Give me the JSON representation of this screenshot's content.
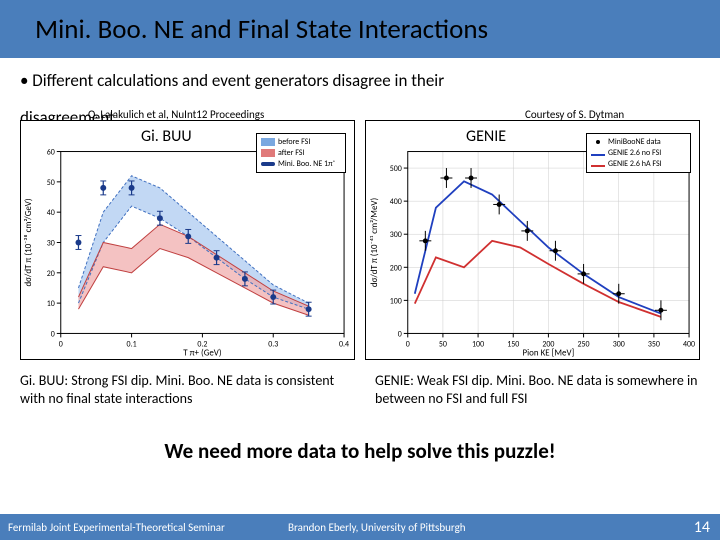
{
  "title": "Mini. Boo. NE and Final State Interactions",
  "bullet": "• Different calculations and event generators disagree in their",
  "overlap_word": "disagreement",
  "credit_left": "O. Lalakulich et al, NuInt12 Proceedings",
  "credit_right": "Courtesy of S. Dytman",
  "gibuu": {
    "label": "Gi. BUU",
    "ylabel": "dσ/dT π (10⁻³⁸ cm²/GeV)",
    "xlabel": "T π+ (GeV)",
    "xlim": [
      0,
      0.4
    ],
    "ylim": [
      0,
      60
    ],
    "xticks": [
      0,
      0.1,
      0.2,
      0.3,
      0.4
    ],
    "yticks": [
      0,
      10,
      20,
      30,
      40,
      50,
      60
    ],
    "legend": [
      {
        "label": "before FSI",
        "color": "#7aa8e0",
        "type": "band"
      },
      {
        "label": "after FSI",
        "color": "#e07a7a",
        "type": "band"
      },
      {
        "label": "Mini. Boo. NE 1π⁺",
        "color": "#1a3a8a",
        "type": "points"
      }
    ],
    "data_x": [
      0.025,
      0.06,
      0.1,
      0.14,
      0.18,
      0.22,
      0.26,
      0.3,
      0.35
    ],
    "data_y": [
      30,
      48,
      48,
      38,
      32,
      25,
      18,
      12,
      8
    ],
    "before_band_low": [
      10,
      30,
      42,
      38,
      32,
      25,
      18,
      12,
      8
    ],
    "before_band_high": [
      15,
      40,
      52,
      48,
      40,
      32,
      24,
      16,
      10
    ],
    "after_band_low": [
      8,
      22,
      20,
      28,
      25,
      20,
      15,
      10,
      6
    ],
    "after_band_high": [
      12,
      30,
      28,
      36,
      32,
      26,
      20,
      14,
      9
    ],
    "colors": {
      "before_band": "#a8c8f0",
      "after_band": "#f0a8a8",
      "data_points": "#1a3a8a",
      "grid": "#cccccc"
    }
  },
  "genie": {
    "label": "GENIE",
    "ylabel": "dσ/dT π (10⁻⁴¹ cm²/MeV)",
    "xlabel": "Pion KE [MeV]",
    "xlim": [
      0,
      400
    ],
    "ylim": [
      0,
      550
    ],
    "xticks": [
      0,
      50,
      100,
      150,
      200,
      250,
      300,
      350,
      400
    ],
    "yticks": [
      0,
      100,
      200,
      300,
      400,
      500
    ],
    "legend": [
      {
        "label": "MiniBooNE data",
        "color": "#000000",
        "type": "points"
      },
      {
        "label": "GENIE 2.6 no FSI",
        "color": "#1f3fbf",
        "type": "line"
      },
      {
        "label": "GENIE 2.6 hA FSI",
        "color": "#d03030",
        "type": "line"
      }
    ],
    "data_x": [
      25,
      55,
      90,
      130,
      170,
      210,
      250,
      300,
      360
    ],
    "data_y": [
      280,
      470,
      470,
      390,
      310,
      250,
      180,
      120,
      70
    ],
    "nofsi_x": [
      10,
      40,
      80,
      120,
      160,
      200,
      250,
      300,
      360
    ],
    "nofsi_y": [
      120,
      380,
      460,
      420,
      340,
      260,
      180,
      110,
      60
    ],
    "fsi_x": [
      10,
      40,
      80,
      120,
      160,
      200,
      250,
      300,
      360
    ],
    "fsi_y": [
      90,
      230,
      200,
      280,
      260,
      210,
      150,
      95,
      50
    ],
    "colors": {
      "data_points": "#000000",
      "nofsi_line": "#1f3fbf",
      "fsi_line": "#d03030",
      "grid": "#cccccc"
    }
  },
  "caption_left": "Gi. BUU: Strong FSI dip. Mini. Boo. NE data is consistent with no final state interactions",
  "caption_right": "GENIE: Weak FSI dip. Mini. Boo. NE data is somewhere in between no FSI and full FSI",
  "conclusion": "We need more data to help solve this puzzle!",
  "footer": {
    "left": "Fermilab Joint Experimental-Theoretical Seminar",
    "center": "Brandon Eberly, University of Pittsburgh",
    "page": "14"
  }
}
